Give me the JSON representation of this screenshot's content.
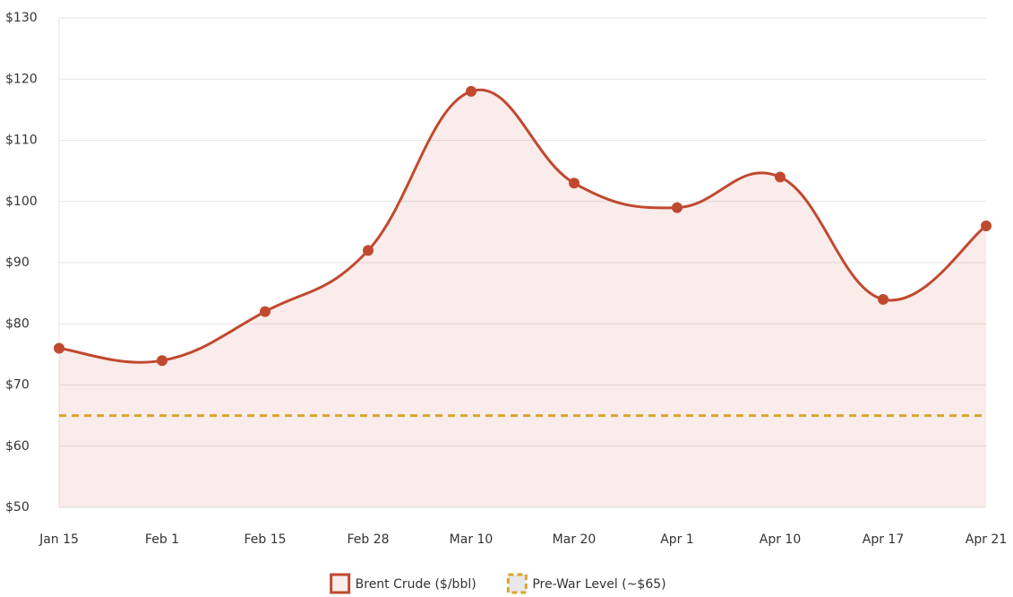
{
  "chart_data": {
    "type": "line",
    "categories": [
      "Jan 15",
      "Feb 1",
      "Feb 15",
      "Feb 28",
      "Mar 10",
      "Mar 20",
      "Apr 1",
      "Apr 10",
      "Apr 17",
      "Apr 21"
    ],
    "series": [
      {
        "name": "Brent Crude ($/bbl)",
        "color": "#c0492f",
        "fill": true,
        "values": [
          76,
          74,
          82,
          92,
          118,
          103,
          99,
          104,
          84,
          96
        ]
      },
      {
        "name": "Pre-War Level (~$65)",
        "color": "#d9a52b",
        "dashed": true,
        "values": [
          65,
          65,
          65,
          65,
          65,
          65,
          65,
          65,
          65,
          65
        ]
      }
    ],
    "ylim": [
      50,
      130
    ],
    "yticks": [
      {
        "value": 50,
        "label": "$50"
      },
      {
        "value": 60,
        "label": "$60"
      },
      {
        "value": 70,
        "label": "$70"
      },
      {
        "value": 80,
        "label": "$80"
      },
      {
        "value": 90,
        "label": "$90"
      },
      {
        "value": 100,
        "label": "$100"
      },
      {
        "value": 110,
        "label": "$110"
      },
      {
        "value": 120,
        "label": "$120"
      },
      {
        "value": 130,
        "label": "$130"
      }
    ],
    "grid": true,
    "legend": "bottom"
  }
}
